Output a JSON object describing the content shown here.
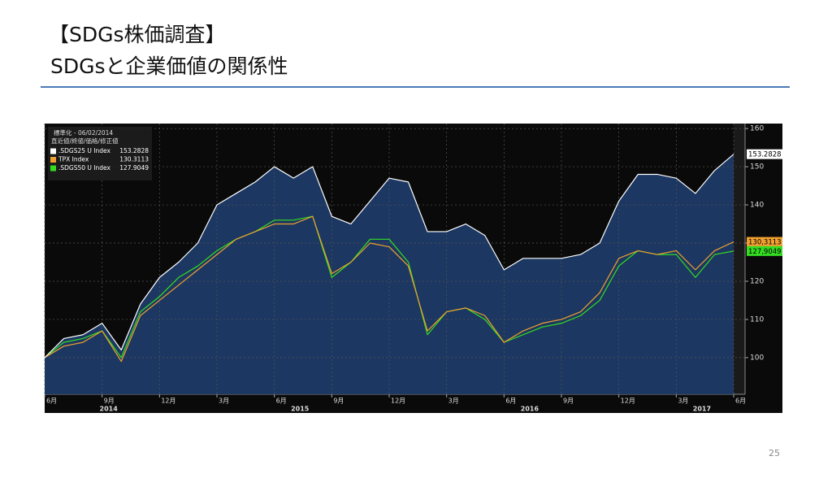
{
  "slide": {
    "title": [
      "【SDGs株価調査】",
      "SDGsと企業価値の関係性"
    ],
    "page_number": "25"
  },
  "chart_data": {
    "type": "line",
    "legend_header": [
      "標準化 - 06/02/2014",
      "直近値/終値/価格/修正値"
    ],
    "legend": "top-left",
    "grid": true,
    "categories": [
      "6月",
      null,
      null,
      "9月",
      null,
      null,
      "12月",
      null,
      null,
      "3月",
      null,
      null,
      "6月",
      null,
      null,
      "9月",
      null,
      null,
      "12月",
      null,
      null,
      "3月",
      null,
      null,
      "6月",
      null,
      null,
      "9月",
      null,
      null,
      "12月",
      null,
      null,
      "3月",
      null,
      null,
      "6月"
    ],
    "year_labels": [
      {
        "at": 3,
        "label": "2014"
      },
      {
        "at": 13,
        "label": "2015"
      },
      {
        "at": 25,
        "label": "2016"
      },
      {
        "at": 34,
        "label": "2017"
      }
    ],
    "series": [
      {
        "name": ".SDGS25 U Index",
        "color": "#ffffff",
        "fill": "#1d3a66",
        "end_label": "153.2828",
        "values": [
          100,
          105,
          106,
          109,
          102,
          114,
          121,
          125,
          130,
          140,
          143,
          146,
          150,
          147,
          150,
          137,
          135,
          141,
          147,
          146,
          133,
          133,
          135,
          132,
          123,
          126,
          126,
          126,
          127,
          130,
          141,
          148,
          148,
          147,
          143,
          149,
          153.2828
        ]
      },
      {
        "name": "TPX Index",
        "color": "#f0a030",
        "end_label": "130,3113",
        "values": [
          100,
          103,
          104,
          107,
          99,
          111,
          115,
          119,
          123,
          127,
          131,
          133,
          135,
          135,
          137,
          122,
          125,
          130,
          129,
          124,
          107,
          112,
          113,
          111,
          104,
          107,
          109,
          110,
          112,
          117,
          126,
          128,
          127,
          128,
          123,
          128,
          130.3113
        ]
      },
      {
        "name": ".SDGS50 U Index",
        "color": "#33dd22",
        "end_label": "127,9049",
        "values": [
          100,
          104,
          105,
          107,
          100,
          112,
          116,
          121,
          124,
          128,
          131,
          133,
          136,
          136,
          137,
          121,
          125,
          131,
          131,
          125,
          106,
          112,
          113,
          110,
          104,
          106,
          108,
          109,
          111,
          115,
          124,
          128,
          127,
          127,
          121,
          127,
          127.9049
        ]
      }
    ],
    "ylim": [
      90.4,
      161.3
    ],
    "yticks": [
      100,
      110,
      120,
      130,
      140,
      150,
      160
    ]
  }
}
